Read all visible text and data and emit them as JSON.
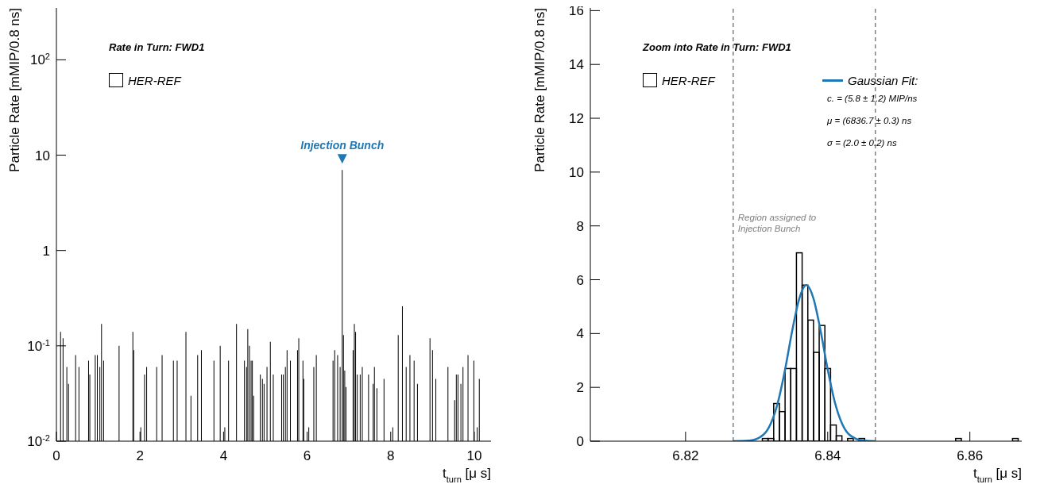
{
  "chart_data": [
    {
      "type": "bar",
      "title": "Rate in Turn: FWD1",
      "xlabel": "t$_{turn}$ [μ s]",
      "ylabel": "Particle Rate [mMIP/0.8 ns]",
      "log": "y",
      "legend": "top left",
      "series": [
        {
          "name": "HER-REF",
          "color": "#000000",
          "x": [
            0.1,
            0.16,
            0.25,
            0.29,
            0.46,
            0.54,
            0.77,
            0.8,
            0.93,
            0.98,
            1.04,
            1.08,
            1.13,
            1.5,
            1.83,
            1.85,
            2.02,
            2.11,
            2.16,
            2.4,
            2.53,
            2.8,
            2.89,
            3.1,
            3.22,
            3.38,
            3.47,
            3.77,
            3.92,
            4.03,
            4.12,
            4.31,
            4.5,
            4.55,
            4.58,
            4.62,
            4.66,
            4.69,
            4.72,
            4.88,
            4.93,
            4.97,
            5.04,
            5.12,
            5.19,
            5.39,
            5.43,
            5.48,
            5.52,
            5.6,
            5.77,
            5.8,
            5.9,
            5.92,
            6.04,
            6.16,
            6.22,
            6.62,
            6.66,
            6.73,
            6.79,
            6.84,
            6.87,
            6.9,
            6.93,
            7.1,
            7.13,
            7.16,
            7.2,
            7.27,
            7.32,
            7.47,
            7.58,
            7.61,
            7.67,
            7.84,
            8.05,
            8.18,
            8.28,
            8.37,
            8.46,
            8.56,
            8.64,
            8.94,
            9.0,
            9.08,
            9.37,
            9.53,
            9.57,
            9.61,
            9.68,
            9.73,
            9.85,
            9.99,
            10.07,
            10.12
          ],
          "values": [
            0.14,
            0.12,
            0.06,
            0.04,
            0.08,
            0.06,
            0.07,
            0.05,
            0.08,
            0.08,
            0.06,
            0.17,
            0.07,
            0.1,
            0.14,
            0.09,
            0.014,
            0.05,
            0.06,
            0.06,
            0.08,
            0.07,
            0.07,
            0.14,
            0.03,
            0.08,
            0.09,
            0.07,
            0.1,
            0.014,
            0.07,
            0.17,
            0.07,
            0.06,
            0.15,
            0.1,
            0.07,
            0.07,
            0.03,
            0.05,
            0.045,
            0.04,
            0.06,
            0.11,
            0.05,
            0.05,
            0.05,
            0.06,
            0.09,
            0.07,
            0.09,
            0.12,
            0.07,
            0.045,
            0.014,
            0.06,
            0.08,
            0.07,
            0.09,
            0.08,
            0.06,
            7,
            0.13,
            0.055,
            0.037,
            0.09,
            0.17,
            0.14,
            0.05,
            0.05,
            0.06,
            0.05,
            0.04,
            0.06,
            0.036,
            0.045,
            0.014,
            0.13,
            0.26,
            0.06,
            0.08,
            0.07,
            0.04,
            0.12,
            0.09,
            0.045,
            0.06,
            0.027,
            0.05,
            0.05,
            0.04,
            0.06,
            0.08,
            0.07,
            0.014,
            0.045
          ]
        }
      ],
      "xlim": [
        0,
        10.4
      ],
      "xticks": [
        0,
        2,
        4,
        6,
        8,
        10
      ],
      "ylim": [
        0.01,
        350
      ],
      "yticks": [
        {
          "value": 0.01,
          "label": "10$^{-2}$"
        },
        {
          "value": 0.1,
          "label": "10$^{-1}$"
        },
        1,
        10,
        {
          "value": 100,
          "label": "10$^{2}$"
        }
      ],
      "annotations": [
        {
          "text": "Injection Bunch",
          "x": 6.84,
          "y": 7
        }
      ]
    },
    {
      "type": "histogram",
      "title": "Zoom into Rate in Turn: FWD1",
      "xlabel": "t$_{turn}$ [μ s]",
      "ylabel": "Particle Rate [mMIP/0.8 ns]",
      "legend": "top",
      "bins": [
        6.83,
        6.8308,
        6.8316,
        6.8324,
        6.8332,
        6.834,
        6.8348,
        6.8356,
        6.8364,
        6.8372,
        6.838,
        6.8388,
        6.8396,
        6.8404,
        6.8412,
        6.842,
        6.8428,
        6.8436,
        6.8444,
        6.8452,
        6.846,
        6.8468,
        6.8476,
        6.8484,
        6.8492,
        6.85,
        6.8508,
        6.8516,
        6.8524,
        6.8532,
        6.854,
        6.8548,
        6.8556,
        6.8564,
        6.8572,
        6.858,
        6.8588,
        6.8596,
        6.8604,
        6.8612,
        6.862,
        6.8628,
        6.8636,
        6.8644,
        6.8652,
        6.866,
        6.8668
      ],
      "series": [
        {
          "name": "HER-REF",
          "color": "#000000",
          "values": [
            0,
            0.1,
            0.1,
            1.4,
            1.1,
            2.7,
            2.7,
            7.0,
            5.8,
            4.5,
            3.3,
            4.3,
            2.7,
            0.6,
            0.2,
            0,
            0.1,
            0,
            0.1,
            0,
            0,
            0,
            0,
            0,
            0,
            0,
            0,
            0,
            0,
            0,
            0,
            0,
            0,
            0,
            0,
            0.1,
            0,
            0,
            0,
            0,
            0,
            0,
            0,
            0,
            0,
            0.1
          ]
        },
        {
          "name": "Gaussian Fit:",
          "type": "line",
          "color": "#1f77b4",
          "x": [
            6.8267,
            6.829,
            6.831,
            6.832,
            6.833,
            6.834,
            6.835,
            6.836,
            6.837,
            6.838,
            6.839,
            6.84,
            6.841,
            6.842,
            6.843,
            6.845,
            6.8467
          ],
          "values": [
            0,
            0.02,
            0.25,
            0.66,
            1.45,
            2.66,
            4.1,
            5.3,
            5.8,
            5.3,
            4.1,
            2.66,
            1.45,
            0.66,
            0.25,
            0.02,
            0
          ]
        }
      ],
      "xlim": [
        6.8066,
        6.8673
      ],
      "xticks": [
        6.82,
        6.84,
        6.86
      ],
      "ylim": [
        0,
        16.1
      ],
      "yticks": [
        0,
        2,
        4,
        6,
        8,
        10,
        12,
        14,
        16
      ],
      "ref_lines": [
        {
          "axis": "x",
          "value": 6.8267,
          "label": "Region assigned to Injection Bunch",
          "color": "#808080",
          "line_style": "dashed"
        },
        {
          "axis": "x",
          "value": 6.8467,
          "color": "#808080",
          "line_style": "dashed"
        }
      ],
      "annotations": [
        "c. = (5.8 ± 1.2) MIP/ns",
        "μ = (6836.7 ± 0.3) ns",
        "σ = (2.0 ± 0.2) ns"
      ]
    }
  ]
}
